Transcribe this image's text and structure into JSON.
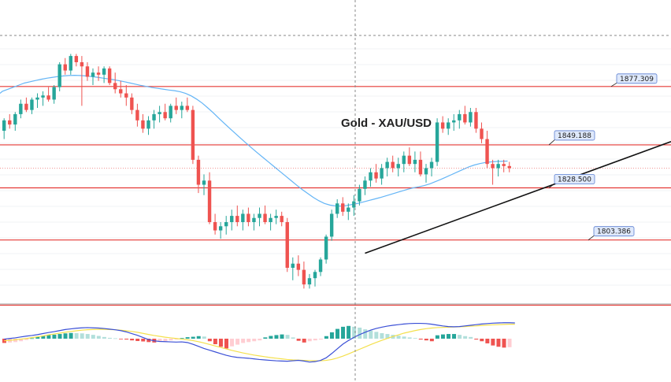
{
  "chart_data": {
    "type": "candlestick",
    "title": "Gold - XAU/USD",
    "instrument": "XAU/USD",
    "y_range": [
      1790,
      1900
    ],
    "colors": {
      "up": "#26a69a",
      "down": "#ef5350",
      "ma": "#64b5f6",
      "level": "#e53935",
      "trendline": "#111111",
      "macd": "#3a4fd6",
      "signal": "#f4e04d",
      "hist_up_strong": "#26a69a",
      "hist_up_weak": "#b2dfdb",
      "hist_down_strong": "#ef5350",
      "hist_down_weak": "#ffcdd2",
      "label_bg": "#dfe9fb",
      "label_border": "#5c7fd1"
    },
    "levels": [
      {
        "value": 1877.309,
        "label": "1877.309"
      },
      {
        "value": 1849.188,
        "label": "1849.188"
      },
      {
        "value": 1828.5,
        "label": "1828.500"
      },
      {
        "value": 1803.386,
        "label": "1803.386"
      },
      {
        "value": 1772.0,
        "label": ""
      }
    ],
    "trendline": {
      "from": [
        65,
        1797
      ],
      "to": [
        135,
        1865
      ]
    },
    "candles": [
      [
        1856,
        1862,
        1852,
        1861
      ],
      [
        1861,
        1864,
        1857,
        1859
      ],
      [
        1859,
        1865,
        1856,
        1864
      ],
      [
        1864,
        1871,
        1862,
        1869
      ],
      [
        1869,
        1872,
        1865,
        1866
      ],
      [
        1866,
        1872,
        1864,
        1871
      ],
      [
        1871,
        1874,
        1867,
        1872
      ],
      [
        1872,
        1875,
        1868,
        1873
      ],
      [
        1873,
        1877,
        1870,
        1871
      ],
      [
        1871,
        1878,
        1869,
        1877
      ],
      [
        1877,
        1889,
        1875,
        1888
      ],
      [
        1888,
        1891,
        1883,
        1885
      ],
      [
        1885,
        1893,
        1883,
        1892
      ],
      [
        1892,
        1893,
        1887,
        1889
      ],
      [
        1889,
        1892,
        1868,
        1887
      ],
      [
        1887,
        1889,
        1880,
        1882
      ],
      [
        1882,
        1886,
        1878,
        1884
      ],
      [
        1884,
        1887,
        1880,
        1883
      ],
      [
        1883,
        1887,
        1879,
        1886
      ],
      [
        1886,
        1887,
        1878,
        1879
      ],
      [
        1879,
        1884,
        1874,
        1876
      ],
      [
        1876,
        1880,
        1872,
        1874
      ],
      [
        1874,
        1878,
        1868,
        1872
      ],
      [
        1872,
        1874,
        1864,
        1866
      ],
      [
        1866,
        1869,
        1858,
        1861
      ],
      [
        1861,
        1864,
        1855,
        1857
      ],
      [
        1857,
        1863,
        1854,
        1861
      ],
      [
        1861,
        1866,
        1857,
        1864
      ],
      [
        1864,
        1868,
        1860,
        1865
      ],
      [
        1865,
        1869,
        1861,
        1862
      ],
      [
        1862,
        1869,
        1860,
        1868
      ],
      [
        1868,
        1872,
        1864,
        1866
      ],
      [
        1866,
        1870,
        1862,
        1868
      ],
      [
        1868,
        1872,
        1865,
        1866
      ],
      [
        1866,
        1868,
        1840,
        1842
      ],
      [
        1842,
        1844,
        1826,
        1830
      ],
      [
        1830,
        1835,
        1825,
        1832
      ],
      [
        1832,
        1836,
        1811,
        1812
      ],
      [
        1812,
        1816,
        1806,
        1808
      ],
      [
        1808,
        1812,
        1804,
        1810
      ],
      [
        1810,
        1815,
        1806,
        1812
      ],
      [
        1812,
        1818,
        1808,
        1815
      ],
      [
        1815,
        1820,
        1810,
        1812
      ],
      [
        1812,
        1818,
        1808,
        1816
      ],
      [
        1816,
        1819,
        1810,
        1812
      ],
      [
        1812,
        1816,
        1808,
        1814
      ],
      [
        1814,
        1819,
        1810,
        1816
      ],
      [
        1816,
        1820,
        1811,
        1812
      ],
      [
        1812,
        1816,
        1808,
        1814
      ],
      [
        1814,
        1818,
        1811,
        1815
      ],
      [
        1815,
        1817,
        1810,
        1812
      ],
      [
        1812,
        1814,
        1788,
        1790
      ],
      [
        1790,
        1795,
        1784,
        1792
      ],
      [
        1792,
        1796,
        1786,
        1789
      ],
      [
        1789,
        1793,
        1780,
        1782
      ],
      [
        1782,
        1787,
        1780,
        1785
      ],
      [
        1785,
        1789,
        1781,
        1788
      ],
      [
        1788,
        1795,
        1786,
        1794
      ],
      [
        1794,
        1806,
        1792,
        1805
      ],
      [
        1805,
        1818,
        1803,
        1816
      ],
      [
        1816,
        1823,
        1814,
        1821
      ],
      [
        1821,
        1824,
        1815,
        1817
      ],
      [
        1817,
        1821,
        1813,
        1819
      ],
      [
        1819,
        1825,
        1815,
        1822
      ],
      [
        1822,
        1830,
        1820,
        1828
      ],
      [
        1828,
        1834,
        1825,
        1832
      ],
      [
        1832,
        1838,
        1829,
        1836
      ],
      [
        1836,
        1840,
        1831,
        1833
      ],
      [
        1833,
        1840,
        1830,
        1838
      ],
      [
        1838,
        1843,
        1834,
        1841
      ],
      [
        1841,
        1844,
        1836,
        1838
      ],
      [
        1838,
        1843,
        1834,
        1840
      ],
      [
        1840,
        1846,
        1836,
        1844
      ],
      [
        1844,
        1848,
        1839,
        1840
      ],
      [
        1840,
        1846,
        1836,
        1842
      ],
      [
        1842,
        1846,
        1834,
        1835
      ],
      [
        1835,
        1840,
        1831,
        1838
      ],
      [
        1838,
        1843,
        1834,
        1841
      ],
      [
        1841,
        1862,
        1839,
        1860
      ],
      [
        1860,
        1863,
        1855,
        1857
      ],
      [
        1857,
        1862,
        1854,
        1860
      ],
      [
        1860,
        1864,
        1856,
        1861
      ],
      [
        1861,
        1866,
        1857,
        1864
      ],
      [
        1864,
        1868,
        1859,
        1860
      ],
      [
        1860,
        1867,
        1858,
        1865
      ],
      [
        1865,
        1867,
        1855,
        1857
      ],
      [
        1857,
        1860,
        1850,
        1852
      ],
      [
        1852,
        1856,
        1838,
        1840
      ],
      [
        1840,
        1842,
        1830,
        1838
      ],
      [
        1838,
        1842,
        1834,
        1840
      ],
      [
        1840,
        1842,
        1836,
        1839
      ],
      [
        1839,
        1841,
        1836,
        1838
      ]
    ],
    "ma": [
      1875,
      1876,
      1877,
      1878,
      1879,
      1879.6,
      1880.2,
      1880.8,
      1881.3,
      1881.7,
      1882.1,
      1882.4,
      1882.6,
      1882.7,
      1882.6,
      1882.4,
      1882.1,
      1881.8,
      1881.4,
      1881.0,
      1880.6,
      1880.1,
      1879.6,
      1879.0,
      1878.4,
      1877.8,
      1877.3,
      1876.8,
      1876.4,
      1876.0,
      1875.6,
      1875.3,
      1874.8,
      1874.0,
      1872.8,
      1871.2,
      1869.3,
      1867.0,
      1864.6,
      1862.0,
      1859.5,
      1857.0,
      1854.6,
      1852.2,
      1849.8,
      1847.5,
      1845.2,
      1843.0,
      1840.8,
      1838.6,
      1836.4,
      1834.2,
      1832.0,
      1829.8,
      1827.7,
      1825.8,
      1823.9,
      1822.3,
      1821.0,
      1820.2,
      1819.8,
      1819.7,
      1820.0,
      1820.5,
      1821.0,
      1821.7,
      1822.4,
      1823.1,
      1823.8,
      1824.6,
      1825.4,
      1826.2,
      1827.0,
      1827.8,
      1828.5,
      1829.0,
      1829.6,
      1830.4,
      1831.5,
      1832.6,
      1833.8,
      1835.0,
      1836.2,
      1837.4,
      1838.6,
      1839.5,
      1840.2,
      1840.7,
      1841.0,
      1841.2,
      1841.3,
      1841.4
    ],
    "macd": [
      -0.2,
      0.1,
      0.4,
      0.8,
      1.2,
      1.5,
      1.9,
      2.4,
      2.9,
      3.3,
      3.8,
      4.3,
      4.6,
      4.9,
      5.1,
      5.2,
      5.1,
      5.0,
      4.8,
      4.5,
      4.2,
      3.8,
      3.2,
      2.4,
      1.6,
      0.6,
      -0.4,
      -1.0,
      -1.3,
      -1.4,
      -1.5,
      -1.6,
      -1.5,
      -1.8,
      -2.6,
      -3.6,
      -4.6,
      -5.4,
      -6.2,
      -7.0,
      -7.8,
      -8.4,
      -8.8,
      -9.0,
      -9.2,
      -9.5,
      -9.8,
      -10.0,
      -10.2,
      -10.4,
      -10.5,
      -10.6,
      -10.4,
      -10.2,
      -10.5,
      -11.0,
      -10.8,
      -10.2,
      -9.0,
      -7.0,
      -4.8,
      -2.6,
      -0.9,
      0.6,
      1.9,
      3.0,
      4.0,
      4.8,
      5.4,
      5.9,
      6.3,
      6.6,
      6.9,
      7.1,
      7.2,
      7.2,
      7.1,
      6.8,
      6.4,
      6.0,
      5.7,
      5.6,
      5.7,
      6.0,
      6.3,
      6.6,
      6.9,
      7.1,
      7.3,
      7.4,
      7.5,
      7.5,
      7.4
    ],
    "signal": [
      -1.0,
      -0.8,
      -0.5,
      -0.2,
      0.1,
      0.5,
      0.9,
      1.3,
      1.8,
      2.2,
      2.6,
      3.0,
      3.4,
      3.7,
      4.0,
      4.2,
      4.3,
      4.4,
      4.4,
      4.3,
      4.2,
      4.0,
      3.7,
      3.4,
      3.0,
      2.5,
      2.0,
      1.5,
      1.1,
      0.7,
      0.4,
      0.1,
      -0.2,
      -0.5,
      -0.9,
      -1.4,
      -2.0,
      -2.7,
      -3.4,
      -4.1,
      -4.8,
      -5.5,
      -6.1,
      -6.7,
      -7.2,
      -7.7,
      -8.1,
      -8.5,
      -8.9,
      -9.2,
      -9.5,
      -9.8,
      -10.0,
      -10.1,
      -10.2,
      -10.3,
      -10.4,
      -10.4,
      -10.2,
      -9.8,
      -9.1,
      -8.2,
      -7.2,
      -6.1,
      -5.0,
      -3.9,
      -2.8,
      -1.8,
      -0.8,
      0.1,
      1.0,
      1.8,
      2.6,
      3.2,
      3.8,
      4.3,
      4.7,
      5.0,
      5.2,
      5.3,
      5.4,
      5.5,
      5.6,
      5.7,
      5.9,
      6.0,
      6.2,
      6.4,
      6.5,
      6.6,
      6.7,
      6.8,
      6.8
    ],
    "hist": [
      -2.0,
      -1.8,
      -1.6,
      -1.2,
      -0.6,
      0.2,
      0.8,
      1.3,
      1.7,
      1.9,
      2.2,
      2.5,
      2.7,
      2.6,
      2.5,
      2.2,
      1.8,
      1.3,
      0.8,
      0.4,
      0.2,
      -0.2,
      -0.4,
      -0.8,
      -1.1,
      -1.3,
      -1.6,
      -1.8,
      -1.5,
      -1.2,
      -0.8,
      -0.4,
      0.3,
      0.7,
      0.9,
      1.2,
      1.0,
      -1.2,
      -2.6,
      -3.8,
      -4.6,
      -3.6,
      -2.8,
      -2.0,
      -1.6,
      -1.2,
      -0.8,
      0.6,
      1.3,
      1.7,
      2.0,
      1.8,
      0.6,
      -1.0,
      -1.8,
      -1.2,
      -0.8,
      -0.4,
      1.2,
      3.0,
      4.6,
      5.6,
      6.0,
      5.6,
      5.2,
      4.4,
      3.8,
      3.2,
      2.6,
      2.2,
      1.8,
      1.4,
      1.0,
      0.6,
      0.3,
      -0.4,
      -0.8,
      -1.2,
      1.6,
      2.0,
      2.2,
      2.2,
      1.8,
      1.2,
      0.8,
      -0.4,
      -1.2,
      -2.2,
      -3.2,
      -3.8,
      -4.2,
      -4.0
    ]
  }
}
